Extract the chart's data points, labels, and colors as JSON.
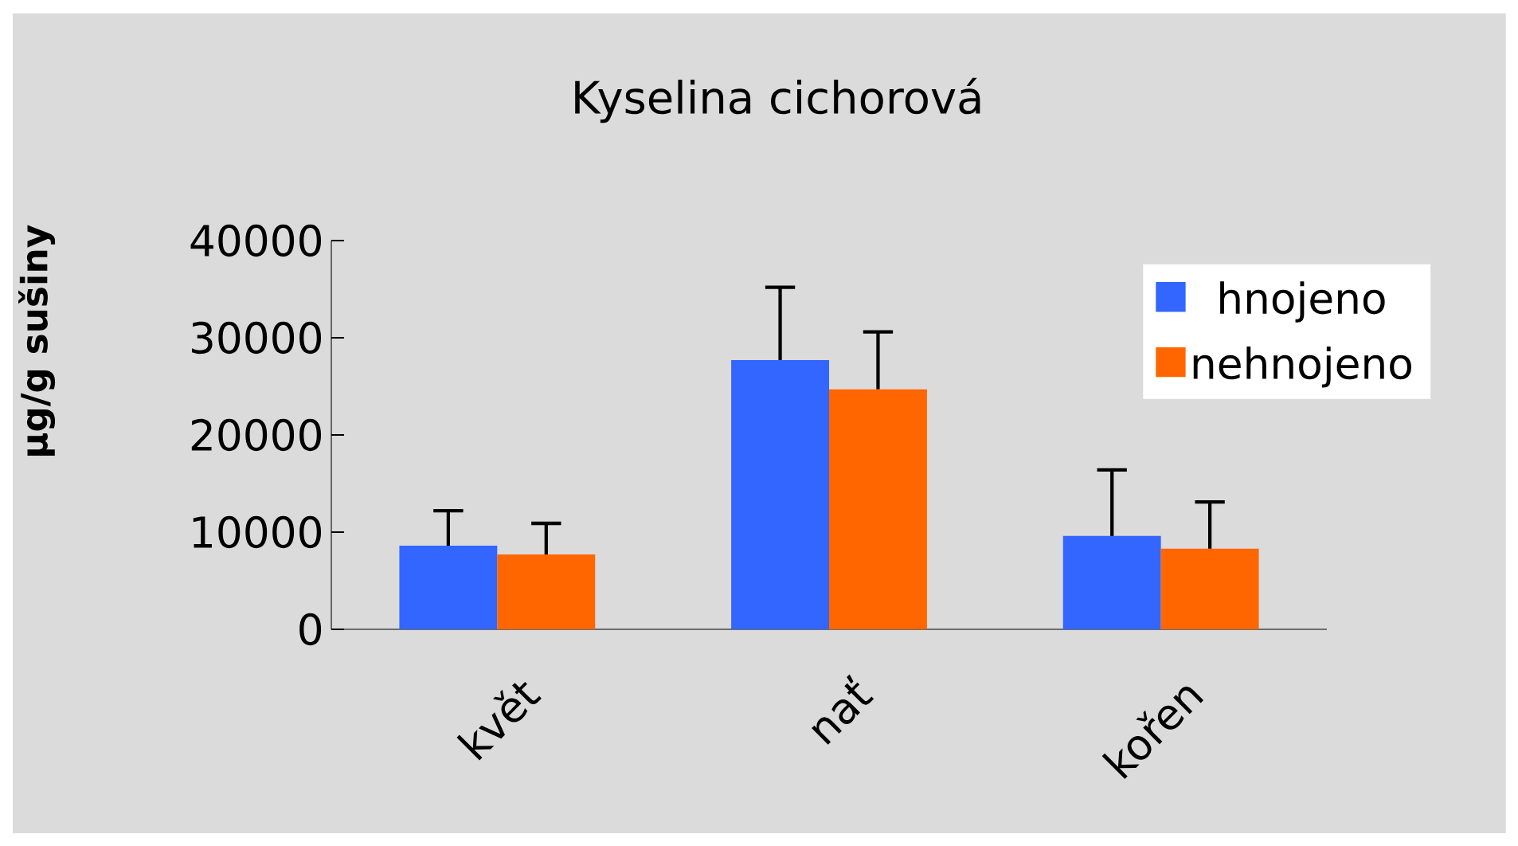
{
  "chart_data": {
    "type": "bar",
    "title": "Kyselina cichorová",
    "ylabel": "µg/g sušiny",
    "categories": [
      "květ",
      "nať",
      "kořen"
    ],
    "series": [
      {
        "name": "hnojeno",
        "color": "#3366ff",
        "values": [
          8600,
          27700,
          9600
        ],
        "errors": [
          [
            8600,
            12200
          ],
          [
            27700,
            35200
          ],
          [
            9600,
            16400
          ]
        ]
      },
      {
        "name": "nehnojeno",
        "color": "#ff6600",
        "values": [
          7700,
          24700,
          8300
        ],
        "errors": [
          [
            7700,
            10900
          ],
          [
            24700,
            30600
          ],
          [
            8300,
            13100
          ]
        ]
      }
    ],
    "ylim": [
      0,
      40000
    ],
    "yticks": [
      0,
      10000,
      20000,
      30000,
      40000
    ],
    "grid": false,
    "legend": "top right"
  }
}
